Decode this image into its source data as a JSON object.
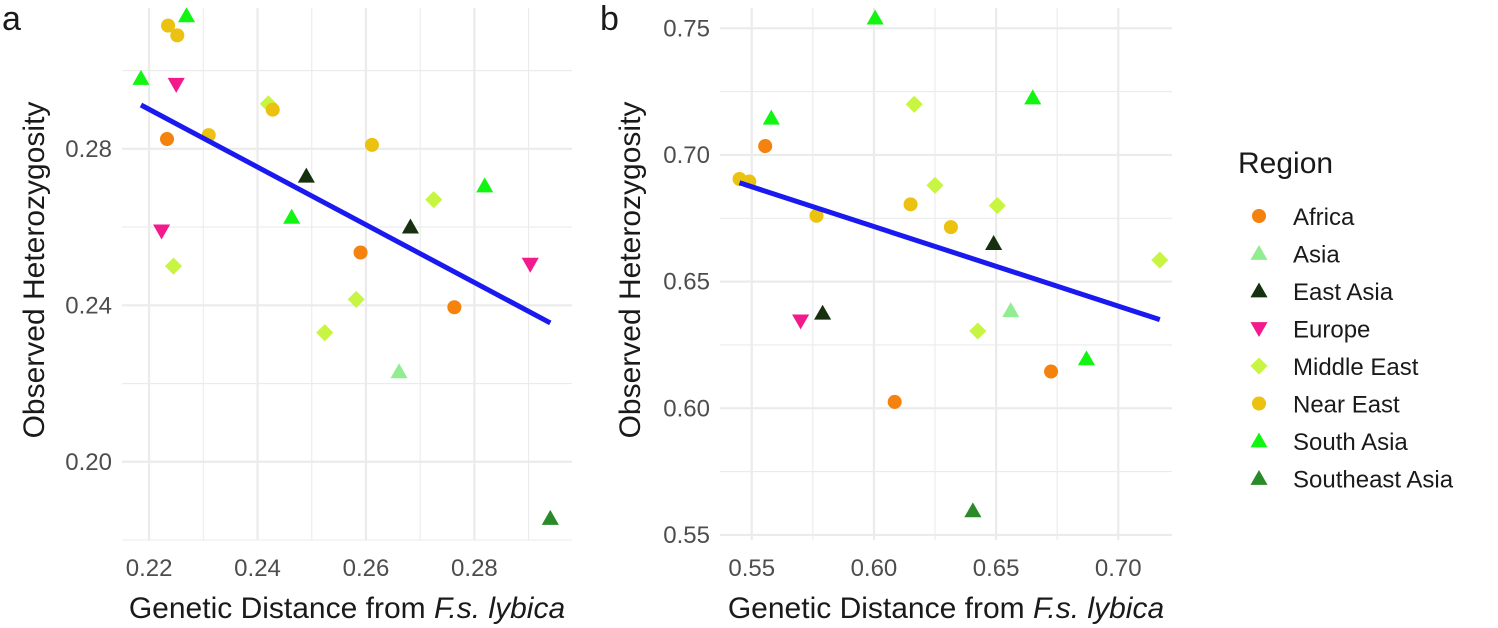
{
  "colors": {
    "Africa": "#F5820D",
    "Asia": "#90EE90",
    "East Asia": "#17300F",
    "Europe": "#F21A8C",
    "Middle East": "#C8F542",
    "Near East": "#EBC20F",
    "South Asia": "#12F512",
    "Southeast Asia": "#2A8A2A",
    "regression": "#1A1AF0",
    "grid": "#EBEBEB"
  },
  "legend": {
    "title": "Region",
    "items": [
      {
        "label": "Africa",
        "shape": "circle"
      },
      {
        "label": "Asia",
        "shape": "triangle-up"
      },
      {
        "label": "East Asia",
        "shape": "triangle-up"
      },
      {
        "label": "Europe",
        "shape": "triangle-down"
      },
      {
        "label": "Middle East",
        "shape": "diamond"
      },
      {
        "label": "Near East",
        "shape": "circle"
      },
      {
        "label": "South Asia",
        "shape": "triangle-up"
      },
      {
        "label": "Southeast Asia",
        "shape": "triangle-up"
      }
    ]
  },
  "chart_data": [
    {
      "type": "scatter",
      "panel_label": "a",
      "ylabel": "Observed Heterozygosity",
      "xlabel_prefix": "Genetic Distance from ",
      "xlabel_italic": "F.s. lybica",
      "xlim": [
        0.215,
        0.298
      ],
      "ylim": [
        0.18,
        0.316
      ],
      "xticks": [
        "0.22",
        "0.24",
        "0.26",
        "0.28"
      ],
      "yticks": [
        "0.20",
        "0.24",
        "0.28"
      ],
      "grid": true,
      "regression": {
        "x": [
          0.2185,
          0.294
        ],
        "y": [
          0.2912,
          0.2355
        ]
      },
      "points": [
        {
          "x": 0.2235,
          "y": 0.3115,
          "region": "Near East"
        },
        {
          "x": 0.2252,
          "y": 0.309,
          "region": "Near East"
        },
        {
          "x": 0.2269,
          "y": 0.314,
          "region": "South Asia"
        },
        {
          "x": 0.2185,
          "y": 0.298,
          "region": "South Asia"
        },
        {
          "x": 0.225,
          "y": 0.2965,
          "region": "Europe"
        },
        {
          "x": 0.242,
          "y": 0.2915,
          "region": "Middle East"
        },
        {
          "x": 0.2428,
          "y": 0.29,
          "region": "Near East"
        },
        {
          "x": 0.231,
          "y": 0.2835,
          "region": "Near East"
        },
        {
          "x": 0.2233,
          "y": 0.2825,
          "region": "Africa"
        },
        {
          "x": 0.2611,
          "y": 0.281,
          "region": "Near East"
        },
        {
          "x": 0.249,
          "y": 0.273,
          "region": "East Asia"
        },
        {
          "x": 0.2819,
          "y": 0.2705,
          "region": "South Asia"
        },
        {
          "x": 0.2725,
          "y": 0.267,
          "region": "Middle East"
        },
        {
          "x": 0.2463,
          "y": 0.2625,
          "region": "South Asia"
        },
        {
          "x": 0.2682,
          "y": 0.26,
          "region": "East Asia"
        },
        {
          "x": 0.2223,
          "y": 0.259,
          "region": "Europe"
        },
        {
          "x": 0.259,
          "y": 0.2535,
          "region": "Africa"
        },
        {
          "x": 0.2245,
          "y": 0.25,
          "region": "Middle East"
        },
        {
          "x": 0.2903,
          "y": 0.2505,
          "region": "Europe"
        },
        {
          "x": 0.2582,
          "y": 0.2415,
          "region": "Middle East"
        },
        {
          "x": 0.2763,
          "y": 0.2395,
          "region": "Africa"
        },
        {
          "x": 0.2524,
          "y": 0.233,
          "region": "Middle East"
        },
        {
          "x": 0.2661,
          "y": 0.223,
          "region": "Asia"
        },
        {
          "x": 0.294,
          "y": 0.1855,
          "region": "Southeast Asia"
        }
      ]
    },
    {
      "type": "scatter",
      "panel_label": "b",
      "ylabel": "Observed Heterozygosity",
      "xlabel_prefix": "Genetic Distance from ",
      "xlabel_italic": "F.s. lybica",
      "xlim": [
        0.537,
        0.722
      ],
      "ylim": [
        0.548,
        0.758
      ],
      "xticks": [
        "0.55",
        "0.60",
        "0.65",
        "0.70"
      ],
      "yticks": [
        "0.55",
        "0.60",
        "0.65",
        "0.70",
        "0.75"
      ],
      "grid": true,
      "regression": {
        "x": [
          0.545,
          0.717
        ],
        "y": [
          0.689,
          0.635
        ]
      },
      "points": [
        {
          "x": 0.6005,
          "y": 0.754,
          "region": "South Asia"
        },
        {
          "x": 0.665,
          "y": 0.7225,
          "region": "South Asia"
        },
        {
          "x": 0.6165,
          "y": 0.72,
          "region": "Middle East"
        },
        {
          "x": 0.558,
          "y": 0.7145,
          "region": "South Asia"
        },
        {
          "x": 0.5555,
          "y": 0.7035,
          "region": "Africa"
        },
        {
          "x": 0.545,
          "y": 0.6905,
          "region": "Near East"
        },
        {
          "x": 0.549,
          "y": 0.6895,
          "region": "Near East"
        },
        {
          "x": 0.625,
          "y": 0.688,
          "region": "Middle East"
        },
        {
          "x": 0.615,
          "y": 0.6805,
          "region": "Near East"
        },
        {
          "x": 0.6505,
          "y": 0.68,
          "region": "Middle East"
        },
        {
          "x": 0.5765,
          "y": 0.676,
          "region": "Near East"
        },
        {
          "x": 0.6315,
          "y": 0.6715,
          "region": "Near East"
        },
        {
          "x": 0.649,
          "y": 0.665,
          "region": "East Asia"
        },
        {
          "x": 0.717,
          "y": 0.6585,
          "region": "Middle East"
        },
        {
          "x": 0.656,
          "y": 0.6385,
          "region": "Asia"
        },
        {
          "x": 0.579,
          "y": 0.6375,
          "region": "East Asia"
        },
        {
          "x": 0.57,
          "y": 0.6345,
          "region": "Europe"
        },
        {
          "x": 0.6425,
          "y": 0.6305,
          "region": "Middle East"
        },
        {
          "x": 0.687,
          "y": 0.6195,
          "region": "South Asia"
        },
        {
          "x": 0.6725,
          "y": 0.6145,
          "region": "Africa"
        },
        {
          "x": 0.6085,
          "y": 0.6025,
          "region": "Africa"
        },
        {
          "x": 0.6405,
          "y": 0.5595,
          "region": "Southeast Asia"
        }
      ]
    }
  ]
}
